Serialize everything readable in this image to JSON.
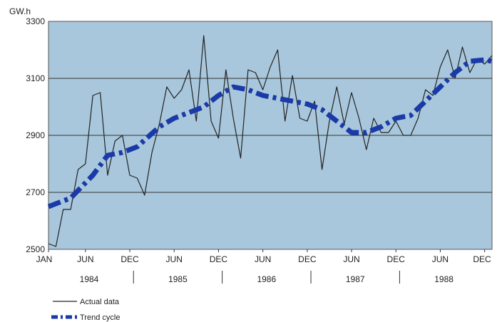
{
  "chart_data": {
    "type": "line",
    "y_unit": "GW.h",
    "ylim": [
      2500,
      3300
    ],
    "yticks": [
      "3300",
      "3100",
      "2900",
      "2700",
      "2500"
    ],
    "x_month_ticks": [
      "JAN",
      "JUN",
      "DEC",
      "JUN",
      "DEC",
      "JUN",
      "DEC",
      "JUN",
      "DEC",
      "JUN",
      "DEC"
    ],
    "years": [
      "1984",
      "1985",
      "1986",
      "1987",
      "1988"
    ],
    "grid": true,
    "background_color": "#a9c7dc",
    "legend_position": "bottom-left",
    "series": [
      {
        "name": "Actual data",
        "color": "#222222",
        "x": [
          1,
          2,
          3,
          4,
          5,
          6,
          7,
          8,
          9,
          10,
          11,
          12,
          13,
          14,
          15,
          16,
          17,
          18,
          19,
          20,
          21,
          22,
          23,
          24,
          25,
          26,
          27,
          28,
          29,
          30,
          31,
          32,
          33,
          34,
          35,
          36,
          37,
          38,
          39,
          40,
          41,
          42,
          43,
          44,
          45,
          46,
          47,
          48,
          49,
          50,
          51,
          52,
          53,
          54,
          55,
          56,
          57,
          58,
          59,
          60,
          61
        ],
        "values": [
          2520,
          2510,
          2640,
          2640,
          2780,
          2800,
          3040,
          3050,
          2760,
          2880,
          2900,
          2760,
          2750,
          2690,
          2840,
          2940,
          3070,
          3030,
          3060,
          3130,
          2950,
          3250,
          2950,
          2890,
          3130,
          2960,
          2820,
          3130,
          3120,
          3060,
          3140,
          3200,
          2950,
          3110,
          2960,
          2950,
          3020,
          2780,
          2950,
          3070,
          2940,
          3050,
          2960,
          2850,
          2960,
          2910,
          2910,
          2950,
          2900,
          2900,
          2960,
          3060,
          3040,
          3140,
          3200,
          3100,
          3210,
          3120,
          3170,
          3150,
          3180
        ]
      },
      {
        "name": "Trend cycle",
        "color": "#1a3aa8",
        "x": [
          1,
          4,
          7,
          9,
          11,
          13,
          16,
          18,
          20,
          22,
          24,
          26,
          28,
          30,
          32,
          34,
          36,
          38,
          40,
          42,
          44,
          46,
          48,
          50,
          52,
          54,
          56,
          58,
          60,
          61
        ],
        "values": [
          2650,
          2680,
          2760,
          2830,
          2840,
          2860,
          2930,
          2960,
          2980,
          3000,
          3040,
          3070,
          3060,
          3040,
          3030,
          3020,
          3010,
          2990,
          2950,
          2910,
          2910,
          2930,
          2960,
          2970,
          3020,
          3070,
          3120,
          3160,
          3165,
          3160
        ]
      }
    ]
  }
}
